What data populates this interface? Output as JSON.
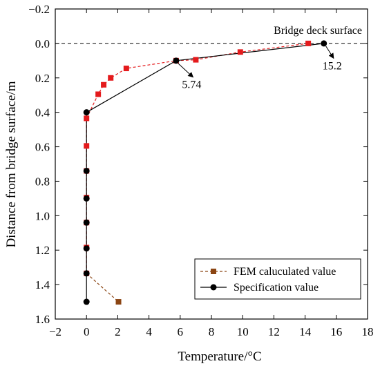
{
  "chart_data": {
    "type": "line",
    "xlabel": "Temperature/°C",
    "ylabel": "Distance from bridge surface/m",
    "xlim": [
      -2,
      18
    ],
    "ylim": [
      -0.2,
      1.6
    ],
    "y_inverted": true,
    "xticks": [
      "−2",
      "0",
      "2",
      "4",
      "6",
      "8",
      "10",
      "12",
      "14",
      "16",
      "18"
    ],
    "xtick_values": [
      -2,
      0,
      2,
      4,
      6,
      8,
      10,
      12,
      14,
      16,
      18
    ],
    "yticks": [
      "−0.2",
      "0.0",
      "0.2",
      "0.4",
      "0.6",
      "0.8",
      "1.0",
      "1.2",
      "1.4",
      "1.6"
    ],
    "ytick_values": [
      -0.2,
      0,
      0.2,
      0.4,
      0.6,
      0.8,
      1.0,
      1.2,
      1.4,
      1.6
    ],
    "reference_line": {
      "y": 0.0,
      "label": "Bridge deck surface"
    },
    "series": [
      {
        "name": "FEM caluculated value",
        "color": "#e41a1c",
        "line_style": "dashed",
        "marker": "square",
        "points": [
          [
            14.2,
            0.0
          ],
          [
            9.85,
            0.05
          ],
          [
            7.0,
            0.095
          ],
          [
            5.74,
            0.1
          ],
          [
            2.55,
            0.145
          ],
          [
            1.55,
            0.2
          ],
          [
            1.1,
            0.24
          ],
          [
            0.75,
            0.295
          ],
          [
            0.0,
            0.435
          ],
          [
            0.0,
            0.595
          ],
          [
            0.0,
            0.74
          ],
          [
            0.0,
            0.895
          ],
          [
            0.0,
            1.04
          ],
          [
            0.0,
            1.185
          ],
          [
            0.0,
            1.335
          ]
        ],
        "tail": {
          "color": "#8b4513",
          "points": [
            [
              0.0,
              1.335
            ],
            [
              2.05,
              1.5
            ]
          ]
        }
      },
      {
        "name": "Specification value",
        "color": "#000000",
        "line_style": "solid",
        "marker": "circle",
        "points": [
          [
            15.2,
            0.0
          ],
          [
            5.74,
            0.1
          ],
          [
            0.0,
            0.4
          ],
          [
            0.0,
            0.74
          ],
          [
            0.0,
            0.9
          ],
          [
            0.0,
            1.04
          ],
          [
            0.0,
            1.19
          ],
          [
            0.0,
            1.335
          ],
          [
            0.0,
            1.5
          ]
        ]
      }
    ],
    "annotations": [
      {
        "text": "15.2",
        "point": [
          15.2,
          0.0
        ],
        "label_at": [
          16.0,
          0.15
        ]
      },
      {
        "text": "5.74",
        "point": [
          5.74,
          0.1
        ],
        "label_at": [
          7.0,
          0.26
        ]
      }
    ],
    "legend": {
      "placement": "bottom-right"
    }
  }
}
